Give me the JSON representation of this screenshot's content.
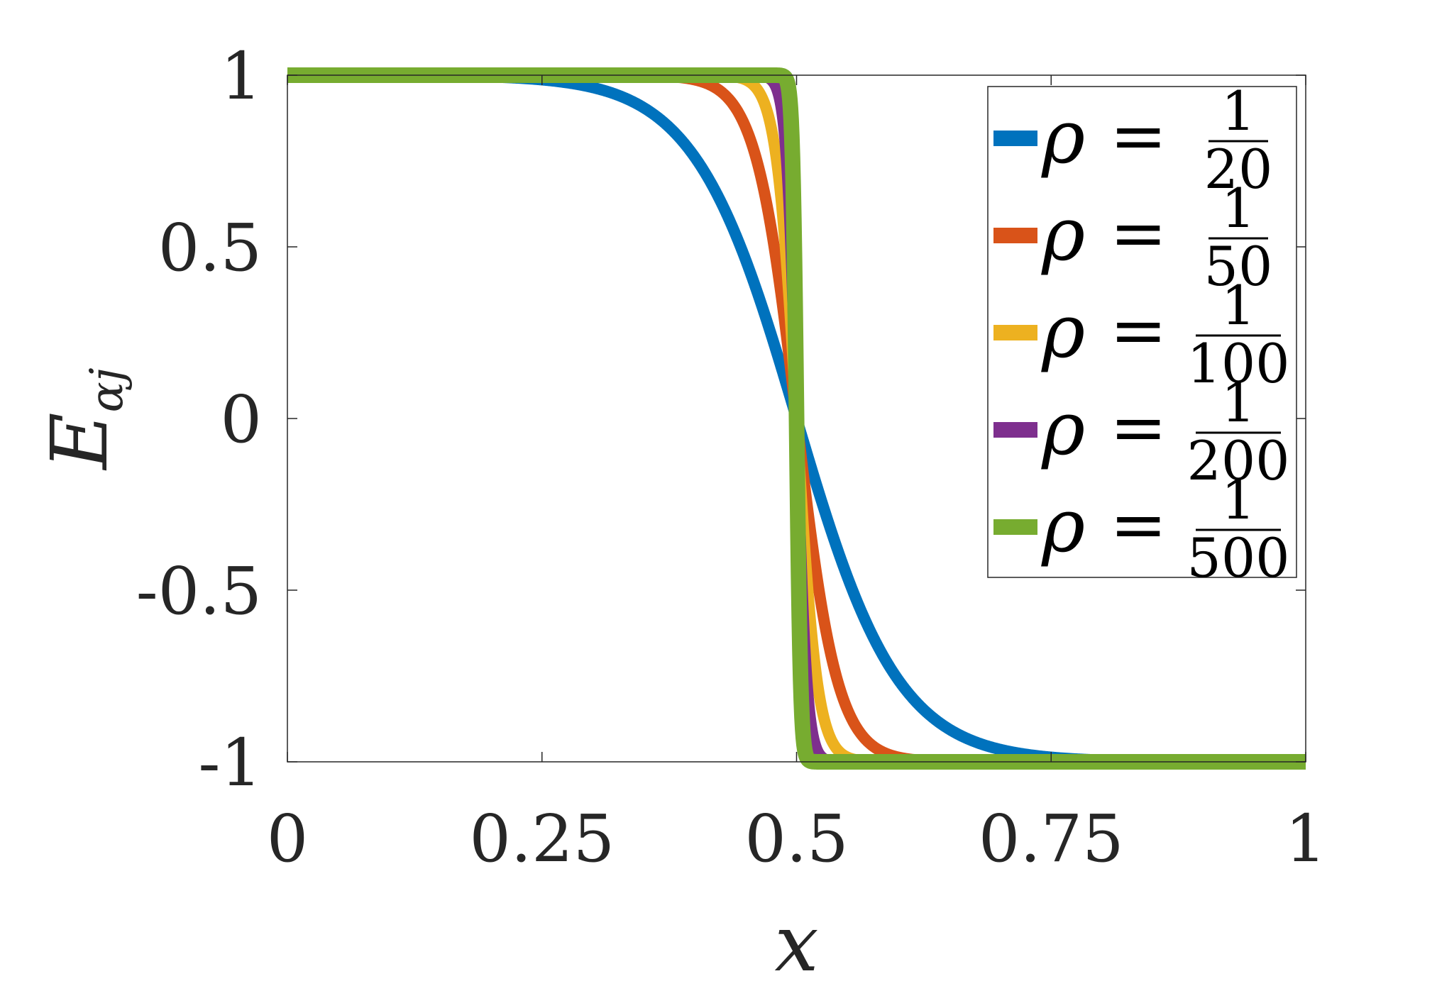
{
  "chart_data": {
    "type": "line",
    "title": "",
    "xlabel": "x",
    "ylabel": {
      "main": "E",
      "sub": "αj"
    },
    "xlim": [
      0,
      1
    ],
    "ylim": [
      -1,
      1
    ],
    "xticks": [
      0,
      0.25,
      0.5,
      0.75,
      1
    ],
    "xtick_labels": [
      "0",
      "0.25",
      "0.5",
      "0.75",
      "1"
    ],
    "yticks": [
      -1,
      -0.5,
      0,
      0.5,
      1
    ],
    "ytick_labels": [
      "-1",
      "-0.5",
      "0",
      "0.5",
      "1"
    ],
    "grid": false,
    "legend_position": "top-right",
    "x_center": 0.5,
    "series": [
      {
        "name": "ρ = 1/20",
        "rho_label": "ρ",
        "eq_label": "=",
        "numerator": "1",
        "denominator": "20",
        "rho": 0.05,
        "color": "#0072BD"
      },
      {
        "name": "ρ = 1/50",
        "rho_label": "ρ",
        "eq_label": "=",
        "numerator": "1",
        "denominator": "50",
        "rho": 0.02,
        "color": "#D95319"
      },
      {
        "name": "ρ = 1/100",
        "rho_label": "ρ",
        "eq_label": "=",
        "numerator": "1",
        "denominator": "100",
        "rho": 0.01,
        "color": "#EDB120"
      },
      {
        "name": "ρ = 1/200",
        "rho_label": "ρ",
        "eq_label": "=",
        "numerator": "1",
        "denominator": "200",
        "rho": 0.005,
        "color": "#7E2F8E"
      },
      {
        "name": "ρ = 1/500",
        "rho_label": "ρ",
        "eq_label": "=",
        "numerator": "1",
        "denominator": "500",
        "rho": 0.002,
        "color": "#77AC30"
      }
    ]
  }
}
